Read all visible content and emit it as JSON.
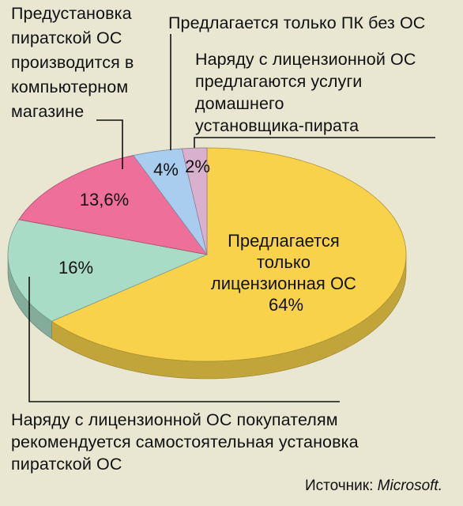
{
  "chart_data": {
    "type": "pie",
    "slices": [
      {
        "label": "Предлагается только лицензионная ОС",
        "value": 64,
        "value_label": "64%",
        "color": "#f8d24a"
      },
      {
        "label": "Наряду с лицензионной ОС покупателям рекомендуется самостоятельная установка пиратской ОС",
        "value": 16,
        "value_label": "16%",
        "color": "#a9dcc6"
      },
      {
        "label": "Предустановка пиратской ОС производится в компьютерном магазине",
        "value": 13.6,
        "value_label": "13,6%",
        "color": "#ef6f9b"
      },
      {
        "label": "Предлагается только ПК без ОС",
        "value": 4,
        "value_label": "4%",
        "color": "#a9cdee"
      },
      {
        "label": "Наряду с лицензионной ОС предлагаются услуги домашнего установщика-пирата",
        "value": 2,
        "value_label": "2%",
        "color": "#d9b0ce"
      }
    ],
    "source_prefix": "Источник: ",
    "source_name": "Microsoft."
  },
  "labels": {
    "preinstall": [
      "Предустановка",
      "пиратской ОС",
      "производится в",
      "компьютерном",
      "магазине"
    ],
    "pc_only": [
      "Предлагается только ПК без ОС"
    ],
    "home_pirate": [
      "Наряду с лицензионной ОС",
      "предлагаются услуги",
      "домашнего",
      "установщика-пирата"
    ],
    "licensed": [
      "Предлагается",
      "только",
      "лицензионная ОС"
    ],
    "self_install": [
      "Наряду с лицензионной ОС покупателям",
      "рекомендуется самостоятельная установка",
      "пиратской ОС"
    ]
  }
}
